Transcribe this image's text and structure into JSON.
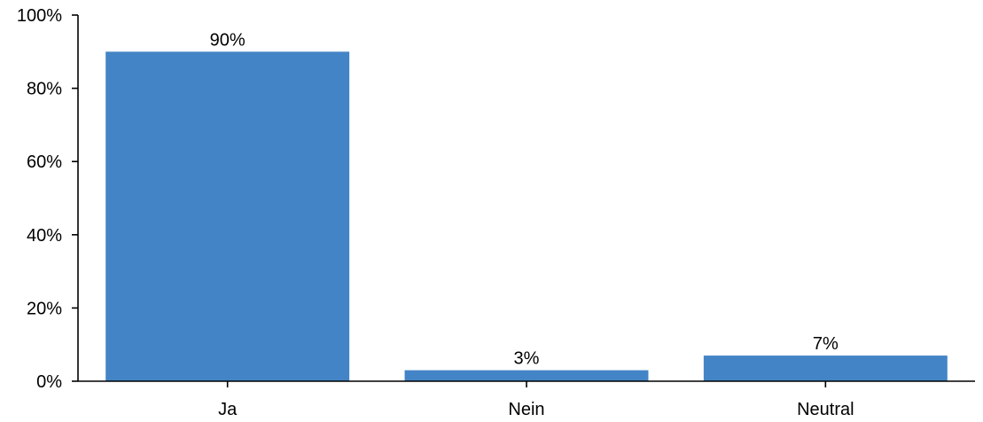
{
  "chart_data": {
    "type": "bar",
    "title": "",
    "xlabel": "",
    "ylabel": "",
    "categories": [
      "Ja",
      "Nein",
      "Neutral"
    ],
    "values": [
      90,
      3,
      7
    ],
    "value_labels": [
      "90%",
      "3%",
      "7%"
    ],
    "ylim": [
      0,
      100
    ],
    "yticks": [
      0,
      20,
      40,
      60,
      80,
      100
    ],
    "ytick_labels": [
      "0%",
      "20%",
      "40%",
      "60%",
      "80%",
      "100%"
    ],
    "grid": false,
    "legend": "none",
    "bar_color": "#4384C6"
  }
}
